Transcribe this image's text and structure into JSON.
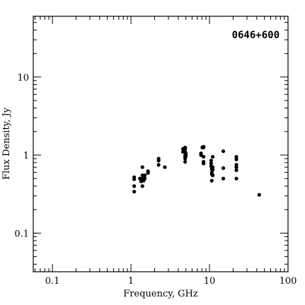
{
  "chart_data": {
    "type": "scatter",
    "title": "0646+600",
    "xlabel": "Frequency, GHz",
    "ylabel": "Flux Density, Jy",
    "xscale": "log",
    "yscale": "log",
    "xlim": [
      0.057,
      100
    ],
    "ylim": [
      0.032,
      60
    ],
    "xticks": [
      {
        "value": 0.1,
        "label": "0.1"
      },
      {
        "value": 1,
        "label": "1"
      },
      {
        "value": 10,
        "label": "10"
      },
      {
        "value": 100,
        "label": "100"
      }
    ],
    "yticks": [
      {
        "value": 0.1,
        "label": "0.1"
      },
      {
        "value": 1,
        "label": "1"
      },
      {
        "value": 10,
        "label": "10"
      }
    ],
    "title_position": "top-right",
    "grid": false,
    "marker_color": "#000000",
    "points": [
      {
        "x": 1.1,
        "y": 0.52
      },
      {
        "x": 1.1,
        "y": 0.49
      },
      {
        "x": 1.1,
        "y": 0.4
      },
      {
        "x": 1.1,
        "y": 0.34
      },
      {
        "x": 1.3,
        "y": 0.5
      },
      {
        "x": 1.35,
        "y": 0.46
      },
      {
        "x": 1.4,
        "y": 0.7
      },
      {
        "x": 1.4,
        "y": 0.55
      },
      {
        "x": 1.4,
        "y": 0.5
      },
      {
        "x": 1.4,
        "y": 0.4
      },
      {
        "x": 1.5,
        "y": 0.55
      },
      {
        "x": 1.5,
        "y": 0.5
      },
      {
        "x": 1.45,
        "y": 0.47
      },
      {
        "x": 1.65,
        "y": 0.62
      },
      {
        "x": 1.65,
        "y": 0.59
      },
      {
        "x": 2.25,
        "y": 0.9
      },
      {
        "x": 2.25,
        "y": 0.85
      },
      {
        "x": 2.25,
        "y": 0.75
      },
      {
        "x": 2.7,
        "y": 0.7
      },
      {
        "x": 4.6,
        "y": 1.2
      },
      {
        "x": 4.6,
        "y": 1.1
      },
      {
        "x": 4.9,
        "y": 1.25
      },
      {
        "x": 4.9,
        "y": 1.2
      },
      {
        "x": 4.9,
        "y": 1.1
      },
      {
        "x": 4.9,
        "y": 1.0
      },
      {
        "x": 4.9,
        "y": 0.95
      },
      {
        "x": 4.9,
        "y": 0.9
      },
      {
        "x": 4.9,
        "y": 0.82
      },
      {
        "x": 5.0,
        "y": 1.05
      },
      {
        "x": 5.0,
        "y": 0.97
      },
      {
        "x": 7.8,
        "y": 1.05
      },
      {
        "x": 7.8,
        "y": 1.0
      },
      {
        "x": 8.1,
        "y": 1.25
      },
      {
        "x": 8.4,
        "y": 1.28
      },
      {
        "x": 8.4,
        "y": 1.25
      },
      {
        "x": 8.4,
        "y": 0.95
      },
      {
        "x": 8.4,
        "y": 0.82
      },
      {
        "x": 8.4,
        "y": 0.78
      },
      {
        "x": 10.5,
        "y": 0.85
      },
      {
        "x": 10.5,
        "y": 0.78
      },
      {
        "x": 10.5,
        "y": 0.72
      },
      {
        "x": 10.7,
        "y": 0.66
      },
      {
        "x": 10.7,
        "y": 0.6
      },
      {
        "x": 10.7,
        "y": 0.57
      },
      {
        "x": 10.7,
        "y": 0.47
      },
      {
        "x": 11.0,
        "y": 0.95
      },
      {
        "x": 11.0,
        "y": 0.7
      },
      {
        "x": 11.0,
        "y": 0.65
      },
      {
        "x": 11.0,
        "y": 0.55
      },
      {
        "x": 15.0,
        "y": 1.12
      },
      {
        "x": 15.0,
        "y": 0.68
      },
      {
        "x": 15.0,
        "y": 0.5
      },
      {
        "x": 22.0,
        "y": 0.95
      },
      {
        "x": 22.0,
        "y": 0.88
      },
      {
        "x": 22.0,
        "y": 0.75
      },
      {
        "x": 22.0,
        "y": 0.7
      },
      {
        "x": 22.0,
        "y": 0.64
      },
      {
        "x": 22.0,
        "y": 0.5
      },
      {
        "x": 43.0,
        "y": 0.31
      }
    ]
  }
}
